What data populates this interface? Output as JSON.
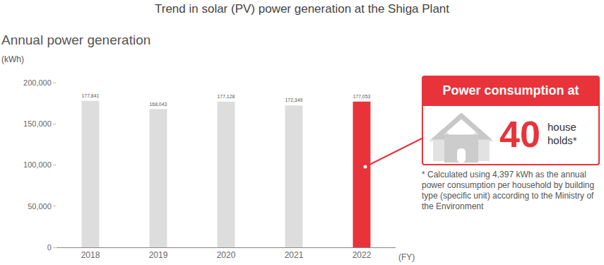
{
  "chart_data": {
    "type": "bar",
    "title": "Trend in solar (PV) power generation at the Shiga Plant",
    "y_label": "Annual power generation",
    "y_unit": "(kWh)",
    "x_label": "(FY)",
    "categories": [
      "2018",
      "2019",
      "2020",
      "2021",
      "2022"
    ],
    "values": [
      177841,
      168043,
      177128,
      172349,
      177053
    ],
    "value_labels": [
      "177,841",
      "168,043",
      "177,128",
      "172,349",
      "177,053"
    ],
    "data_labels": true,
    "colors": [
      "#dddddd",
      "#dddddd",
      "#dddddd",
      "#dddddd",
      "#e8333a"
    ],
    "ylim": [
      0,
      200000
    ],
    "yticks": [
      0,
      {
        "value": 50000,
        "label": "50,000"
      },
      {
        "value": 100000,
        "label": "100,000"
      },
      {
        "value": 150000,
        "label": "150,000"
      },
      {
        "value": 200000,
        "label": "200,000"
      }
    ],
    "grid": false,
    "annotations": {
      "header": "Power consumption at",
      "number": "40",
      "unit": [
        "house",
        "holds*"
      ],
      "footnote": "* Calculated using 4,397 kWh as the annual power consumption per household by building type (specific unit) according to the Ministry of the Environment"
    }
  }
}
